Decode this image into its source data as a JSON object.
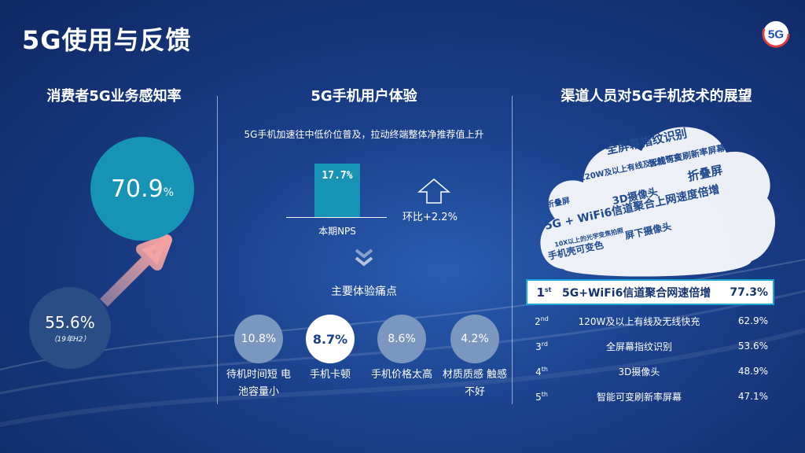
{
  "title": "5G使用与反馈",
  "logo": {
    "text": "5G",
    "icon": "5g-logo-icon"
  },
  "left": {
    "heading": "消费者5G业务感知率",
    "current": {
      "value": "70.9",
      "unit": "%"
    },
    "previous": {
      "value": "55.6%",
      "label": "（19年H2）"
    },
    "accent_color": "#1794b5"
  },
  "middle": {
    "heading": "5G手机用户体验",
    "description": "5G手机加速往中低价位普及，拉动终端整体净推荐值上升",
    "bar": {
      "value": "17.7%",
      "category": "本期NPS"
    },
    "growth": "环比+2.2%",
    "pain_title": "主要体验痛点",
    "pain_points": [
      {
        "value": "10.8%",
        "label": "待机时间短 电池容量小"
      },
      {
        "value": "8.7%",
        "label": "手机卡顿"
      },
      {
        "value": "8.6%",
        "label": "手机价格太高"
      },
      {
        "value": "4.2%",
        "label": "材质质感 触感不好"
      }
    ]
  },
  "right": {
    "heading": "渠道人员对5G手机技术的展望",
    "cloud_words": [
      "全屏幕指纹识别",
      "120W及以上有线及无线快充",
      "折叠屏",
      "智能可变刷新率屏幕",
      "3D摄像头",
      "5G + WiFi6信道聚合上网速度倍增",
      "屏下摄像头",
      "手机壳可变色",
      "10X以上的光学变焦拍照",
      "折叠屏"
    ],
    "ranking": [
      {
        "rank": "1",
        "suffix": "st",
        "name": "5G+WiFi6信道聚合网速倍增",
        "value": "77.3%"
      },
      {
        "rank": "2",
        "suffix": "nd",
        "name": "120W及以上有线及无线快充",
        "value": "62.9%"
      },
      {
        "rank": "3",
        "suffix": "rd",
        "name": "全屏幕指纹识别",
        "value": "53.6%"
      },
      {
        "rank": "4",
        "suffix": "th",
        "name": "3D摄像头",
        "value": "48.9%"
      },
      {
        "rank": "5",
        "suffix": "th",
        "name": "智能可变刷新率屏幕",
        "value": "47.1%"
      }
    ]
  }
}
